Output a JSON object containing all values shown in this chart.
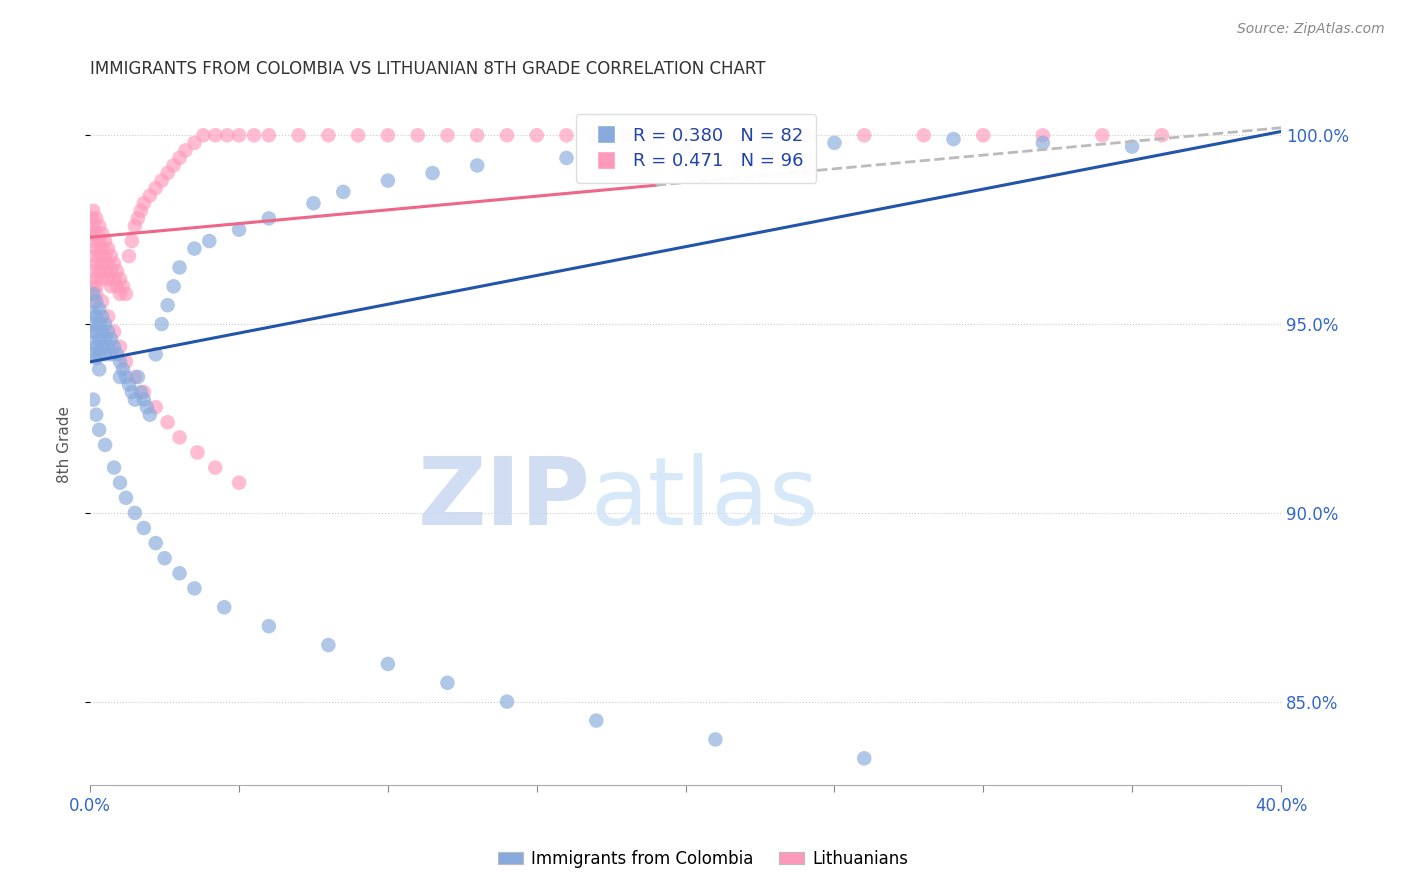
{
  "title": "IMMIGRANTS FROM COLOMBIA VS LITHUANIAN 8TH GRADE CORRELATION CHART",
  "source": "Source: ZipAtlas.com",
  "ylabel": "8th Grade",
  "legend_label1": "Immigrants from Colombia",
  "legend_label2": "Lithuanians",
  "legend_r1": "R = 0.380",
  "legend_n1": "N = 82",
  "legend_r2": "R = 0.471",
  "legend_n2": "N = 96",
  "color_blue": "#88AADD",
  "color_pink": "#FF99BB",
  "trendline_blue": "#2255AA",
  "trendline_pink": "#EE6688",
  "trendline_gray": "#BBBBBB",
  "watermark_zip": "ZIP",
  "watermark_atlas": "atlas",
  "xlim_min": 0.0,
  "xlim_max": 0.4,
  "ylim_min": 0.828,
  "ylim_max": 1.008,
  "yticks": [
    0.85,
    0.9,
    0.95,
    1.0
  ],
  "yticklabels": [
    "85.0%",
    "90.0%",
    "95.0%",
    "100.0%"
  ],
  "blue_x": [
    0.0005,
    0.001,
    0.001,
    0.001,
    0.001,
    0.001,
    0.002,
    0.002,
    0.002,
    0.002,
    0.002,
    0.003,
    0.003,
    0.003,
    0.003,
    0.003,
    0.004,
    0.004,
    0.004,
    0.005,
    0.005,
    0.005,
    0.006,
    0.006,
    0.007,
    0.007,
    0.008,
    0.009,
    0.01,
    0.01,
    0.011,
    0.012,
    0.013,
    0.014,
    0.015,
    0.016,
    0.017,
    0.018,
    0.019,
    0.02,
    0.022,
    0.024,
    0.026,
    0.028,
    0.03,
    0.035,
    0.04,
    0.05,
    0.06,
    0.075,
    0.085,
    0.1,
    0.115,
    0.13,
    0.16,
    0.2,
    0.25,
    0.29,
    0.32,
    0.35,
    0.001,
    0.002,
    0.003,
    0.005,
    0.008,
    0.01,
    0.012,
    0.015,
    0.018,
    0.022,
    0.025,
    0.03,
    0.035,
    0.045,
    0.06,
    0.08,
    0.1,
    0.12,
    0.14,
    0.17,
    0.21,
    0.26
  ],
  "blue_y": [
    0.95,
    0.958,
    0.953,
    0.948,
    0.945,
    0.942,
    0.956,
    0.952,
    0.948,
    0.944,
    0.941,
    0.954,
    0.95,
    0.946,
    0.942,
    0.938,
    0.952,
    0.948,
    0.944,
    0.95,
    0.946,
    0.942,
    0.948,
    0.944,
    0.946,
    0.942,
    0.944,
    0.942,
    0.94,
    0.936,
    0.938,
    0.936,
    0.934,
    0.932,
    0.93,
    0.936,
    0.932,
    0.93,
    0.928,
    0.926,
    0.942,
    0.95,
    0.955,
    0.96,
    0.965,
    0.97,
    0.972,
    0.975,
    0.978,
    0.982,
    0.985,
    0.988,
    0.99,
    0.992,
    0.994,
    0.996,
    0.998,
    0.999,
    0.998,
    0.997,
    0.93,
    0.926,
    0.922,
    0.918,
    0.912,
    0.908,
    0.904,
    0.9,
    0.896,
    0.892,
    0.888,
    0.884,
    0.88,
    0.875,
    0.87,
    0.865,
    0.86,
    0.855,
    0.85,
    0.845,
    0.84,
    0.835
  ],
  "pink_x": [
    0.0005,
    0.0005,
    0.001,
    0.001,
    0.001,
    0.001,
    0.001,
    0.001,
    0.001,
    0.002,
    0.002,
    0.002,
    0.002,
    0.002,
    0.002,
    0.003,
    0.003,
    0.003,
    0.003,
    0.004,
    0.004,
    0.004,
    0.004,
    0.005,
    0.005,
    0.005,
    0.006,
    0.006,
    0.006,
    0.007,
    0.007,
    0.007,
    0.008,
    0.008,
    0.009,
    0.009,
    0.01,
    0.01,
    0.011,
    0.012,
    0.013,
    0.014,
    0.015,
    0.016,
    0.017,
    0.018,
    0.02,
    0.022,
    0.024,
    0.026,
    0.028,
    0.03,
    0.032,
    0.035,
    0.038,
    0.042,
    0.046,
    0.05,
    0.055,
    0.06,
    0.07,
    0.08,
    0.09,
    0.1,
    0.11,
    0.12,
    0.13,
    0.14,
    0.15,
    0.16,
    0.17,
    0.18,
    0.19,
    0.2,
    0.22,
    0.24,
    0.26,
    0.28,
    0.3,
    0.32,
    0.34,
    0.36,
    0.002,
    0.004,
    0.006,
    0.008,
    0.01,
    0.012,
    0.015,
    0.018,
    0.022,
    0.026,
    0.03,
    0.036,
    0.042,
    0.05
  ],
  "pink_y": [
    0.978,
    0.974,
    0.98,
    0.976,
    0.972,
    0.968,
    0.964,
    0.96,
    0.956,
    0.978,
    0.974,
    0.97,
    0.966,
    0.962,
    0.958,
    0.976,
    0.972,
    0.968,
    0.964,
    0.974,
    0.97,
    0.966,
    0.962,
    0.972,
    0.968,
    0.964,
    0.97,
    0.966,
    0.962,
    0.968,
    0.964,
    0.96,
    0.966,
    0.962,
    0.964,
    0.96,
    0.962,
    0.958,
    0.96,
    0.958,
    0.968,
    0.972,
    0.976,
    0.978,
    0.98,
    0.982,
    0.984,
    0.986,
    0.988,
    0.99,
    0.992,
    0.994,
    0.996,
    0.998,
    1.0,
    1.0,
    1.0,
    1.0,
    1.0,
    1.0,
    1.0,
    1.0,
    1.0,
    1.0,
    1.0,
    1.0,
    1.0,
    1.0,
    1.0,
    1.0,
    1.0,
    1.0,
    1.0,
    1.0,
    1.0,
    1.0,
    1.0,
    1.0,
    1.0,
    1.0,
    1.0,
    1.0,
    0.96,
    0.956,
    0.952,
    0.948,
    0.944,
    0.94,
    0.936,
    0.932,
    0.928,
    0.924,
    0.92,
    0.916,
    0.912,
    0.908
  ]
}
